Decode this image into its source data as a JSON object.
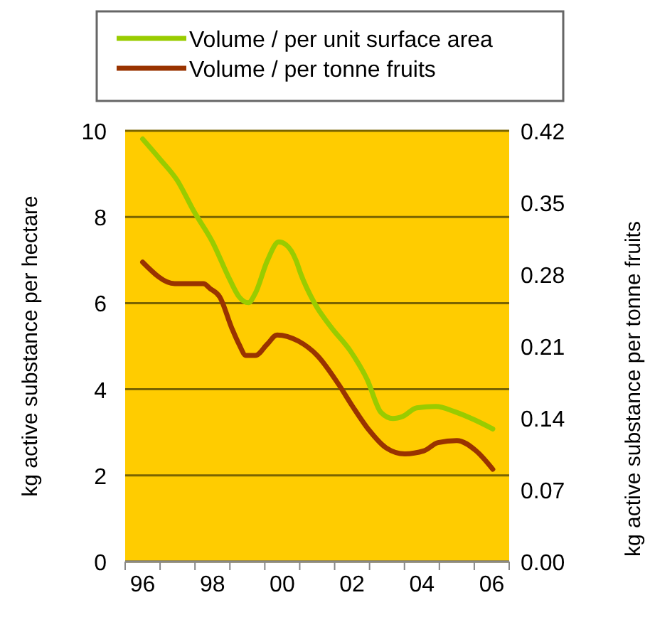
{
  "chart_data": {
    "type": "line",
    "ylabel": "kg active substance per hectare",
    "y2label": "kg active substance per tonne fruits",
    "xlim": [
      1995.5,
      2006.5
    ],
    "xticks": [
      {
        "value": 1995.5,
        "label": null
      },
      {
        "value": 1996,
        "label": "96"
      },
      {
        "value": 1996.5,
        "label": null
      },
      {
        "value": 1997.5,
        "label": null
      },
      {
        "value": 1998,
        "label": "98"
      },
      {
        "value": 1998.5,
        "label": null
      },
      {
        "value": 1999.5,
        "label": null
      },
      {
        "value": 2000,
        "label": "00"
      },
      {
        "value": 2000.5,
        "label": null
      },
      {
        "value": 2001.5,
        "label": null
      },
      {
        "value": 2002,
        "label": "02"
      },
      {
        "value": 2002.5,
        "label": null
      },
      {
        "value": 2003.5,
        "label": null
      },
      {
        "value": 2004,
        "label": "04"
      },
      {
        "value": 2004.5,
        "label": null
      },
      {
        "value": 2005.5,
        "label": null
      },
      {
        "value": 2006,
        "label": "06"
      },
      {
        "value": 2006.5,
        "label": null
      }
    ],
    "ylim": [
      0,
      10
    ],
    "yticks": [
      0,
      2,
      4,
      6,
      8,
      10
    ],
    "y2lim": [
      0,
      0.42
    ],
    "y2ticks": [
      {
        "value": 0,
        "label": "0.00"
      },
      0.07,
      0.14,
      0.21,
      0.28,
      0.35,
      0.42
    ],
    "grid": "y",
    "legend": "top",
    "marker": "none",
    "line_style": "solid",
    "series": [
      {
        "name": "Volume / per unit surface area",
        "color": "#99cc00",
        "x": [
          1996,
          1996.5,
          1996.99,
          1997.47,
          1998,
          1998.5,
          1998.76,
          1999.03,
          1999.23,
          1999.57,
          1999.9,
          2000.1,
          2000.4,
          2000.52,
          2000.93,
          2001.4,
          2001.95,
          2002.43,
          2002.83,
          2003.17,
          2003.45,
          2003.85,
          2004.4,
          2004.94,
          2005.48,
          2006.03
        ],
        "values": [
          9.81,
          9.34,
          8.85,
          8.13,
          7.42,
          6.54,
          6.15,
          6.01,
          6.23,
          6.98,
          7.42,
          7.36,
          6.98,
          6.7,
          5.99,
          5.44,
          4.89,
          4.23,
          3.46,
          3.32,
          3.37,
          3.57,
          3.6,
          3.48,
          3.3,
          3.08
        ]
      },
      {
        "name": "Volume / per tonne fruits",
        "color": "#993300",
        "axis": "y2",
        "x": [
          1996,
          1996.92,
          1997.74,
          1997.94,
          1998.21,
          1998.55,
          1998.76,
          1998.96,
          1999.23,
          1999.57,
          1999.85,
          2000.46,
          2001,
          2001.61,
          2002.02,
          2002.49,
          2002.97,
          2003.51,
          2004.06,
          2004.46,
          2005,
          2005.55,
          2006.03
        ],
        "values": [
          0.292,
          0.271,
          0.271,
          0.266,
          0.258,
          0.228,
          0.212,
          0.201,
          0.201,
          0.212,
          0.221,
          0.215,
          0.201,
          0.173,
          0.151,
          0.128,
          0.111,
          0.105,
          0.108,
          0.116,
          0.118,
          0.108,
          0.09
        ]
      }
    ]
  }
}
